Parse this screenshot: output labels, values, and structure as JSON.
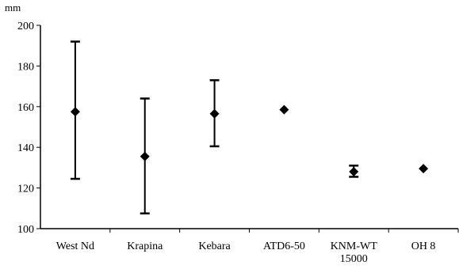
{
  "chart_data": {
    "type": "scatter",
    "ylabel": "mm",
    "ylim": [
      100,
      200
    ],
    "yticks": [
      100,
      120,
      140,
      160,
      180,
      200
    ],
    "grid": false,
    "categories": [
      {
        "lines": [
          "West Nd"
        ]
      },
      {
        "lines": [
          "Krapina"
        ]
      },
      {
        "lines": [
          "Kebara"
        ]
      },
      {
        "lines": [
          "ATD6-50"
        ]
      },
      {
        "lines": [
          "KNM-WT",
          "15000"
        ]
      },
      {
        "lines": [
          "OH 8"
        ]
      }
    ],
    "points": [
      {
        "category": "West Nd",
        "value": 157.5,
        "min": 124.5,
        "max": 192
      },
      {
        "category": "Krapina",
        "value": 135.5,
        "min": 107.5,
        "max": 164
      },
      {
        "category": "Kebara",
        "value": 156.5,
        "min": 140.5,
        "max": 173
      },
      {
        "category": "ATD6-50",
        "value": 158.5
      },
      {
        "category": "KNM-WT 15000",
        "value": 128,
        "min": 125.5,
        "max": 131
      },
      {
        "category": "OH 8",
        "value": 129.5
      }
    ]
  }
}
